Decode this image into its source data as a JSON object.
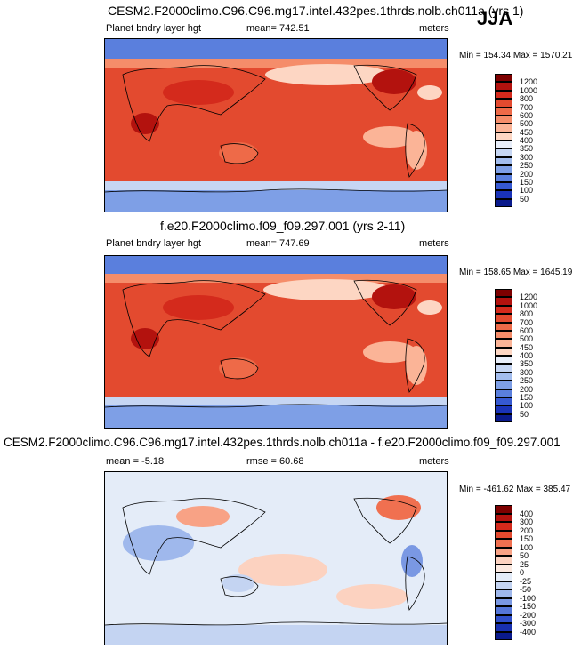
{
  "season": "JJA",
  "panels": [
    {
      "title": "CESM2.F2000climo.C96.C96.mg17.intel.432pes.1thrds.nolb.ch011a (yrs 1)",
      "left_label": "Planet bndry layer hgt",
      "center_label": "mean= 742.51",
      "units": "meters",
      "minmax": "Min = 154.34 Max = 1570.21",
      "colorbar": [
        "1200",
        "1000",
        "800",
        "700",
        "600",
        "500",
        "450",
        "400",
        "350",
        "300",
        "250",
        "200",
        "150",
        "100",
        "50"
      ],
      "palette": "abs"
    },
    {
      "title": "f.e20.F2000climo.f09_f09.297.001 (yrs 2-11)",
      "left_label": "Planet bndry layer hgt",
      "center_label": "mean= 747.69",
      "units": "meters",
      "minmax": "Min = 158.65 Max = 1645.19",
      "colorbar": [
        "1200",
        "1000",
        "800",
        "700",
        "600",
        "500",
        "450",
        "400",
        "350",
        "300",
        "250",
        "200",
        "150",
        "100",
        "50"
      ],
      "palette": "abs"
    },
    {
      "title": "CESM2.F2000climo.C96.C96.mg17.intel.432pes.1thrds.nolb.ch011a - f.e20.F2000climo.f09_f09.297.001",
      "left_label": "mean =  -5.18",
      "center_label": "rmse =  60.68",
      "units": "meters",
      "minmax": "Min = -461.62 Max = 385.47",
      "colorbar": [
        "400",
        "300",
        "200",
        "150",
        "100",
        "50",
        "25",
        "0",
        "-25",
        "-50",
        "-100",
        "-150",
        "-200",
        "-300",
        "-400"
      ],
      "palette": "diff"
    }
  ],
  "chart_data": {
    "type": "heatmap",
    "variable": "Planet bndry layer hgt",
    "units": "meters",
    "season": "JJA",
    "maps": [
      {
        "title": "CESM2.F2000climo.C96.C96.mg17.intel.432pes.1thrds.nolb.ch011a (yrs 1)",
        "mean": 742.51,
        "min": 154.34,
        "max": 1570.21,
        "levels": [
          50,
          100,
          150,
          200,
          250,
          300,
          350,
          400,
          450,
          500,
          600,
          700,
          800,
          1000,
          1200
        ]
      },
      {
        "title": "f.e20.F2000climo.f09_f09.297.001 (yrs 2-11)",
        "mean": 747.69,
        "min": 158.65,
        "max": 1645.19,
        "levels": [
          50,
          100,
          150,
          200,
          250,
          300,
          350,
          400,
          450,
          500,
          600,
          700,
          800,
          1000,
          1200
        ]
      },
      {
        "title": "CESM2.F2000climo.C96.C96.mg17.intel.432pes.1thrds.nolb.ch011a - f.e20.F2000climo.f09_f09.297.001",
        "mean": -5.18,
        "rmse": 60.68,
        "min": -461.62,
        "max": 385.47,
        "levels": [
          -400,
          -300,
          -200,
          -150,
          -100,
          -50,
          -25,
          0,
          25,
          50,
          100,
          150,
          200,
          300,
          400
        ]
      }
    ],
    "palette_abs": [
      "#7d0000",
      "#b3120e",
      "#d42a1c",
      "#e34a2f",
      "#ee6a48",
      "#f58d6a",
      "#fbb497",
      "#fdd6c3",
      "#e8eef9",
      "#c6d6f3",
      "#a3bdee",
      "#7e9fe6",
      "#5a7fdd",
      "#3659d2",
      "#1a33b8",
      "#0a1a8c"
    ],
    "palette_diff": [
      "#7d0000",
      "#b3120e",
      "#d42a1c",
      "#e34a2f",
      "#f07050",
      "#f8a285",
      "#fcd2c0",
      "#fbe9e0",
      "#e4ecf8",
      "#c4d4f2",
      "#9fb8ec",
      "#7a98e3",
      "#5577da",
      "#3050cc",
      "#1830b0",
      "#0a1a8c"
    ]
  }
}
